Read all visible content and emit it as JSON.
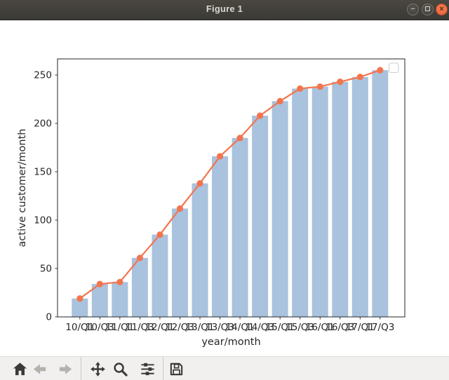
{
  "window": {
    "title": "Figure 1",
    "controls": {
      "minimize_glyph": "−",
      "close_glyph": "×"
    }
  },
  "chart_data": {
    "type": "bar",
    "line_overlay": true,
    "title": "",
    "categories": [
      "10/Q1",
      "10/Q3",
      "11/Q1",
      "11/Q3",
      "12/Q1",
      "12/Q3",
      "13/Q1",
      "13/Q3",
      "14/Q1",
      "14/Q3",
      "15/Q1",
      "15/Q3",
      "16/Q1",
      "16/Q3",
      "17/Q1",
      "17/Q3"
    ],
    "values": [
      19,
      34,
      36,
      61,
      85,
      112,
      138,
      166,
      185,
      208,
      223,
      236,
      238,
      243,
      248,
      255
    ],
    "xlabel": "year/month",
    "ylabel": "active customer/month",
    "yticks": [
      0,
      50,
      100,
      150,
      200,
      250
    ],
    "ylim": [
      0,
      267
    ],
    "grid": false,
    "legend": {
      "visible": true,
      "entries": [],
      "position": "upper-right"
    },
    "colors": {
      "bar": "#a9c2dd",
      "line": "#f3744d",
      "marker": "#f3744d",
      "axis": "#262626",
      "legend_border": "#cccccc"
    }
  },
  "toolbar": {
    "buttons": [
      {
        "icon": "home-icon",
        "enabled": true
      },
      {
        "icon": "back-arrow-icon",
        "enabled": false
      },
      {
        "icon": "forward-arrow-icon",
        "enabled": false
      },
      {
        "icon": "pan-icon",
        "enabled": true
      },
      {
        "icon": "zoom-icon",
        "enabled": true
      },
      {
        "icon": "subplots-icon",
        "enabled": true
      },
      {
        "icon": "save-icon",
        "enabled": true
      }
    ]
  }
}
